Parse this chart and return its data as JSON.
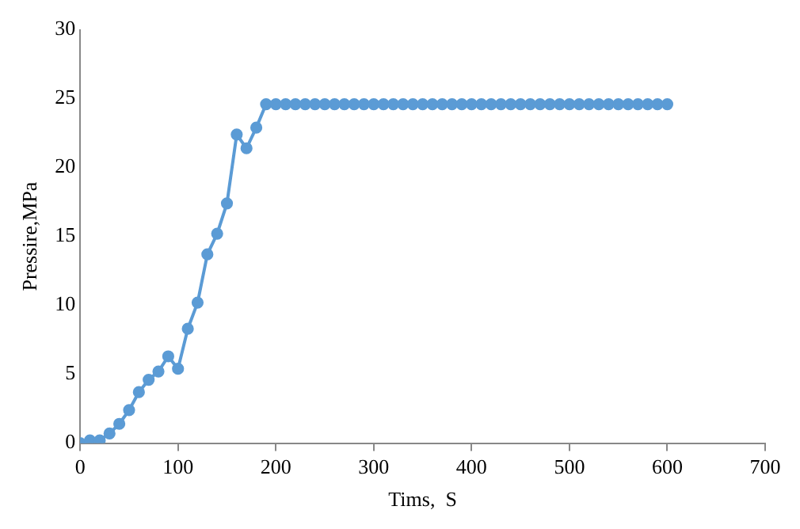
{
  "chart_data": {
    "type": "line",
    "xlabel": "Tims,  S",
    "ylabel": "Pressire,MPa",
    "x": [
      0,
      10,
      20,
      30,
      40,
      50,
      60,
      70,
      80,
      90,
      100,
      110,
      120,
      130,
      140,
      150,
      160,
      170,
      180,
      190,
      200,
      210,
      220,
      230,
      240,
      250,
      260,
      270,
      280,
      290,
      300,
      310,
      320,
      330,
      340,
      350,
      360,
      370,
      380,
      390,
      400,
      410,
      420,
      430,
      440,
      450,
      460,
      470,
      480,
      490,
      500,
      510,
      520,
      530,
      540,
      550,
      560,
      570,
      580,
      590,
      600
    ],
    "series": [
      {
        "color": "#5b9bd5",
        "values": [
          0,
          0.2,
          0.2,
          0.7,
          1.4,
          2.4,
          3.7,
          4.6,
          5.2,
          6.3,
          5.4,
          8.3,
          10.2,
          13.7,
          15.2,
          17.4,
          22.4,
          21.4,
          22.9,
          24.6,
          24.6,
          24.6,
          24.6,
          24.6,
          24.6,
          24.6,
          24.6,
          24.6,
          24.6,
          24.6,
          24.6,
          24.6,
          24.6,
          24.6,
          24.6,
          24.6,
          24.6,
          24.6,
          24.6,
          24.6,
          24.6,
          24.6,
          24.6,
          24.6,
          24.6,
          24.6,
          24.6,
          24.6,
          24.6,
          24.6,
          24.6,
          24.6,
          24.6,
          24.6,
          24.6,
          24.6,
          24.6,
          24.6,
          24.6,
          24.6,
          24.6
        ]
      }
    ],
    "xlim": [
      0,
      700
    ],
    "xticks": [
      0,
      100,
      200,
      300,
      400,
      500,
      600,
      700
    ],
    "ylim": [
      0,
      30
    ],
    "yticks": [
      0,
      5,
      10,
      15,
      20,
      25,
      30
    ],
    "grid": false,
    "legend": false,
    "marker": "circle",
    "line_style": "solid"
  }
}
